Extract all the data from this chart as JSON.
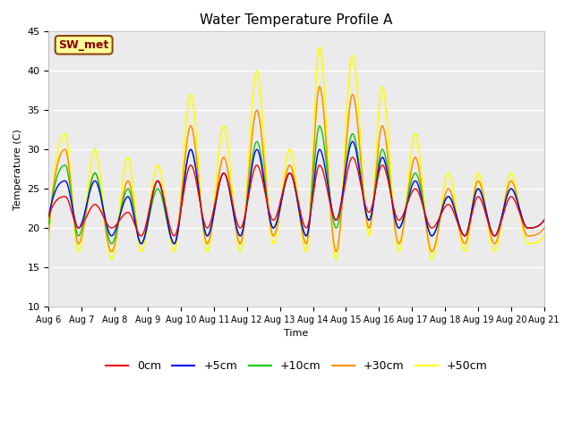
{
  "title": "Water Temperature Profile A",
  "xlabel": "Time",
  "ylabel": "Temperature (C)",
  "ylim": [
    10,
    45
  ],
  "yticks": [
    10,
    15,
    20,
    25,
    30,
    35,
    40,
    45
  ],
  "annotation_text": "SW_met",
  "annotation_color": "#8B0000",
  "annotation_bg": "#FFFF99",
  "legend_entries": [
    "0cm",
    "+5cm",
    "+10cm",
    "+30cm",
    "+50cm"
  ],
  "legend_colors": [
    "#FF0000",
    "#0000FF",
    "#00CC00",
    "#FF8C00",
    "#FFFF00"
  ],
  "line_colors": {
    "0cm": "#FF0000",
    "+5cm": "#0000FF",
    "+10cm": "#00CC00",
    "+30cm": "#FF8C00",
    "+50cm": "#FFFF00"
  },
  "bg_color": "#EBEBEB",
  "xtick_labels": [
    "Aug 6",
    "Aug 7",
    "Aug 8",
    "Aug 9",
    "Aug 10",
    "Aug 11",
    "Aug 12",
    "Aug 13",
    "Aug 14",
    "Aug 15",
    "Aug 16",
    "Aug 17",
    "Aug 18",
    "Aug 19",
    "Aug 20",
    "Aug 21"
  ],
  "peak_times_days": [
    0.5,
    1.4,
    2.4,
    3.3,
    4.3,
    5.3,
    6.3,
    7.3,
    8.2,
    9.2,
    10.1,
    11.1,
    12.1,
    13.0,
    14.0
  ],
  "trough_times_days": [
    0.9,
    1.9,
    2.8,
    3.8,
    4.8,
    5.8,
    6.8,
    7.8,
    8.7,
    9.7,
    10.6,
    11.6,
    12.6,
    13.5,
    14.5
  ],
  "peaks_50cm": [
    32,
    30,
    29,
    28,
    37,
    33,
    40,
    30,
    43,
    42,
    38,
    32,
    27,
    27,
    27
  ],
  "troughs_50cm": [
    17,
    16,
    17,
    17,
    17,
    17,
    18,
    17,
    16,
    19,
    17,
    16,
    17,
    17,
    18
  ],
  "peaks_30cm": [
    30,
    27,
    26,
    26,
    33,
    29,
    35,
    28,
    38,
    37,
    33,
    29,
    25,
    26,
    26
  ],
  "troughs_30cm": [
    18,
    17,
    18,
    18,
    18,
    18,
    19,
    18,
    17,
    20,
    18,
    17,
    18,
    18,
    19
  ],
  "peaks_10cm": [
    28,
    27,
    25,
    25,
    30,
    27,
    31,
    27,
    33,
    32,
    30,
    27,
    24,
    25,
    25
  ],
  "troughs_10cm": [
    19,
    18,
    18,
    18,
    19,
    19,
    20,
    19,
    20,
    21,
    20,
    19,
    19,
    19,
    20
  ],
  "peaks_5cm": [
    26,
    26,
    24,
    26,
    30,
    27,
    30,
    27,
    30,
    31,
    29,
    26,
    24,
    25,
    25
  ],
  "troughs_5cm": [
    20,
    19,
    18,
    18,
    19,
    19,
    20,
    19,
    21,
    21,
    20,
    19,
    19,
    19,
    20
  ],
  "peaks_0cm": [
    24,
    23,
    22,
    26,
    28,
    27,
    28,
    27,
    28,
    29,
    28,
    25,
    23,
    24,
    24
  ],
  "troughs_0cm": [
    20,
    20,
    19,
    19,
    20,
    20,
    21,
    20,
    21,
    22,
    21,
    20,
    19,
    19,
    20
  ]
}
